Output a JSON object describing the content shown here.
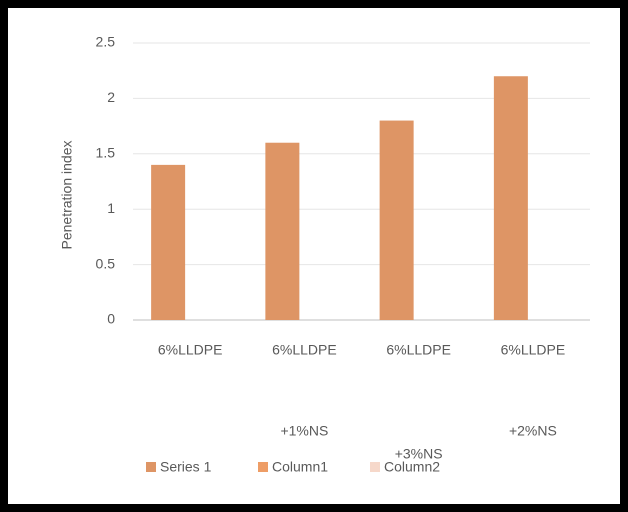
{
  "chart_data": {
    "type": "bar",
    "categories": [
      [
        "6%LLDPE"
      ],
      [
        "6%LLDPE",
        "+1%NS"
      ],
      [
        "6%LLDPE",
        "+3%NS"
      ],
      [
        "6%LLDPE",
        "+2%NS"
      ]
    ],
    "series": [
      {
        "name": "Series 1",
        "color": "#de9565",
        "values": [
          1.4,
          1.6,
          1.8,
          2.2
        ]
      },
      {
        "name": "Column1",
        "color": "#ee9d66",
        "values": [
          null,
          null,
          null,
          null
        ]
      },
      {
        "name": "Column2",
        "color": "#f6d8ca",
        "values": [
          null,
          null,
          null,
          null
        ]
      }
    ],
    "y_label": "Penetration index",
    "ylim": [
      0,
      2.5
    ],
    "yticks": [
      0,
      0.5,
      1,
      1.5,
      2,
      2.5
    ],
    "grid": true,
    "legend": "bottom"
  }
}
